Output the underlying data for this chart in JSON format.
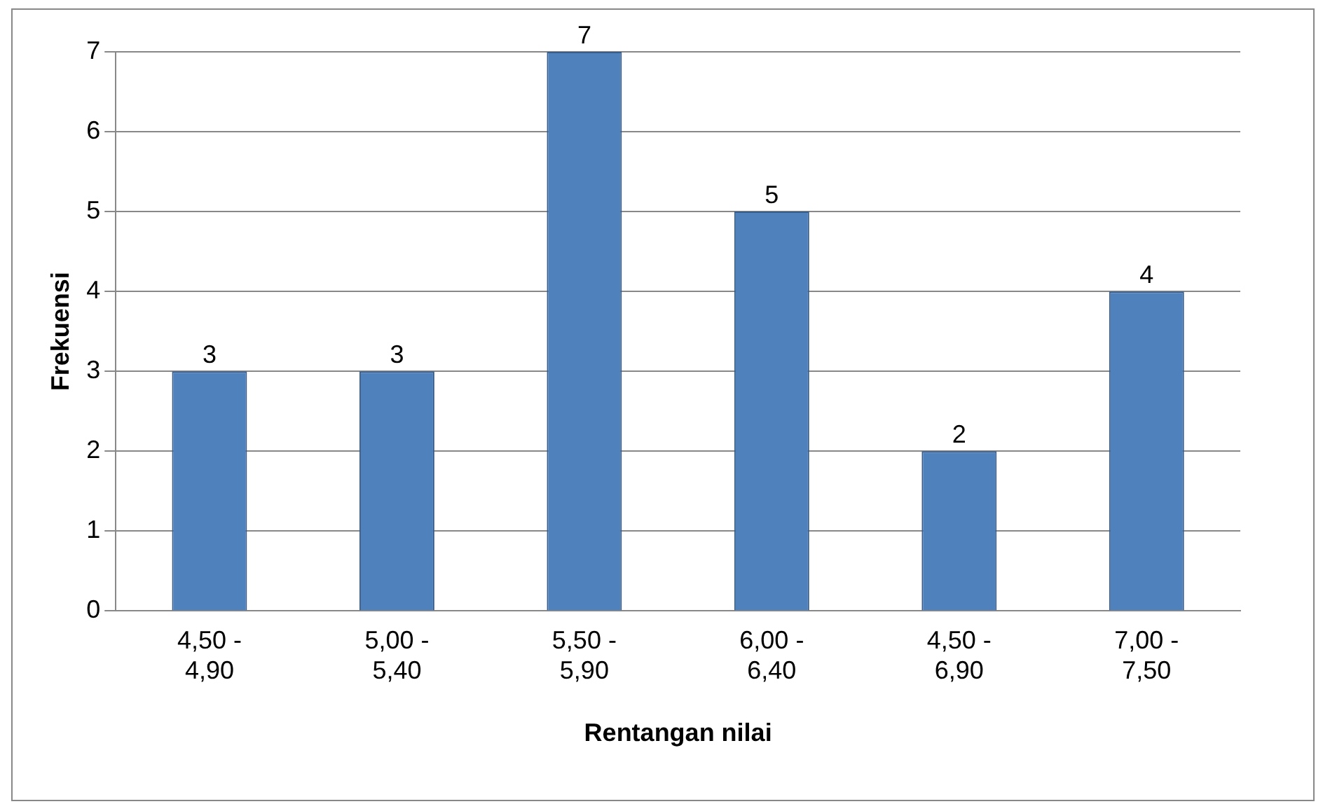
{
  "chart_data": {
    "type": "bar",
    "xlabel": "Rentangan nilai",
    "ylabel": "Frekuensi",
    "categories": [
      "4,50 - 4,90",
      "5,00 - 5,40",
      "5,50 - 5,90",
      "6,00 - 6,40",
      "4,50 - 6,90",
      "7,00 - 7,50"
    ],
    "values": [
      3,
      3,
      7,
      5,
      2,
      4
    ],
    "color": "#4f81bd",
    "ylim": [
      0,
      7
    ],
    "yticks": [
      0,
      1,
      2,
      3,
      4,
      5,
      6,
      7
    ],
    "grid": "y",
    "legend": false,
    "data_labels": true
  }
}
